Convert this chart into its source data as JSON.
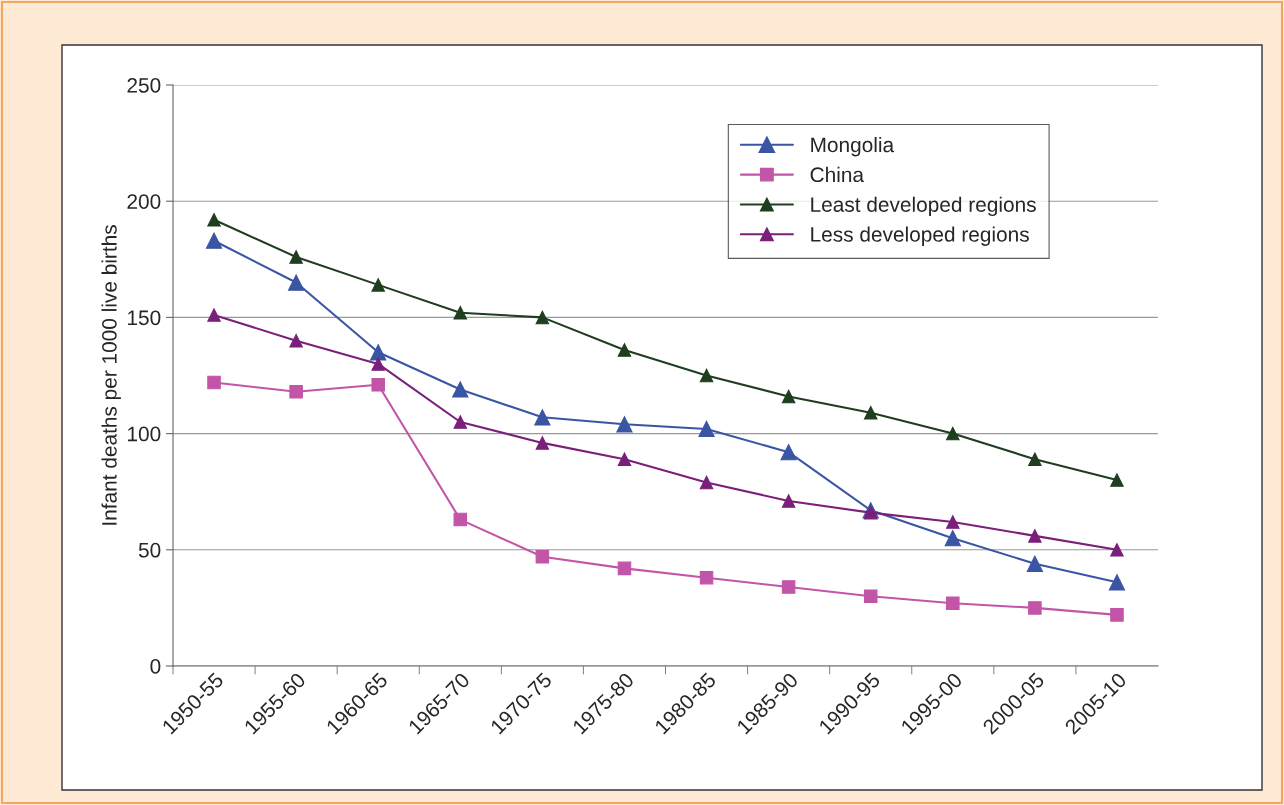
{
  "chart_data": {
    "type": "line",
    "ylabel": "Infant deaths per 1000 live births",
    "categories": [
      "1950-55",
      "1955-60",
      "1960-65",
      "1965-70",
      "1970-75",
      "1975-80",
      "1980-85",
      "1985-90",
      "1990-95",
      "1995-00",
      "2000-05",
      "2005-10"
    ],
    "series": [
      {
        "name": "Mongolia",
        "color": "#3a55a4",
        "marker": "triangle",
        "values": [
          183,
          165,
          135,
          119,
          107,
          104,
          102,
          92,
          67,
          55,
          44,
          36
        ]
      },
      {
        "name": "China",
        "color": "#c355a8",
        "marker": "square",
        "values": [
          122,
          118,
          121,
          63,
          47,
          42,
          38,
          34,
          30,
          27,
          25,
          22
        ]
      },
      {
        "name": "Least developed regions",
        "color": "#1f3d1f",
        "marker": "triangle",
        "values": [
          192,
          176,
          164,
          152,
          150,
          136,
          125,
          116,
          109,
          100,
          89,
          80
        ]
      },
      {
        "name": "Less developed regions",
        "color": "#7a1f7a",
        "marker": "triangle",
        "values": [
          151,
          140,
          130,
          105,
          96,
          89,
          79,
          71,
          66,
          62,
          56,
          50
        ]
      }
    ],
    "ylim": [
      0,
      250
    ],
    "yticks": [
      0,
      50,
      100,
      150,
      200,
      250
    ],
    "grid": "y",
    "legend": "top right",
    "line_style": "solid"
  }
}
